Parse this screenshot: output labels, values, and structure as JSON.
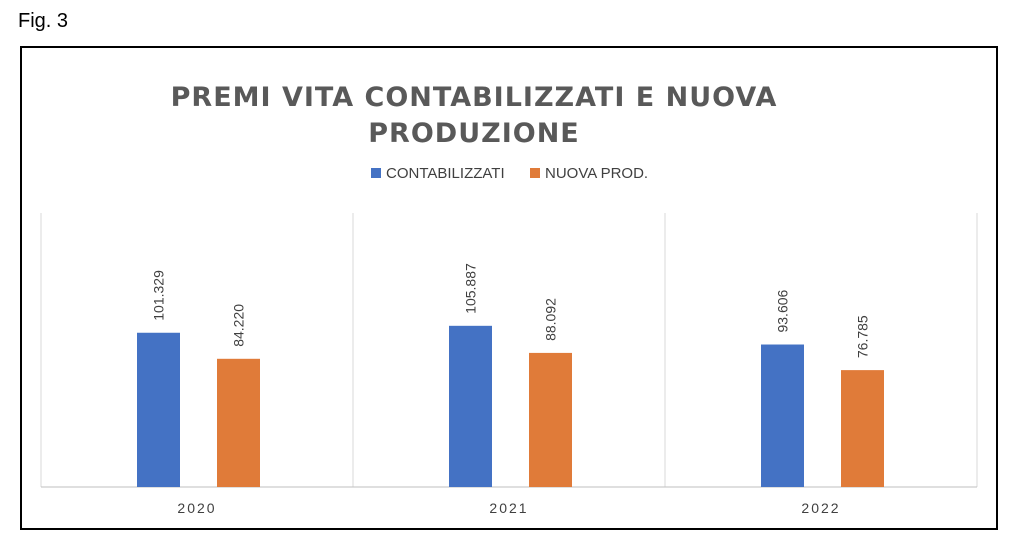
{
  "figure_label": "Fig. 3",
  "chart_data": {
    "type": "bar",
    "title": "PREMI VITA CONTABILIZZATI E NUOVA PRODUZIONE",
    "title_lines": [
      "PREMI VITA CONTABILIZZATI E NUOVA",
      "PRODUZIONE"
    ],
    "categories": [
      "2020",
      "2021",
      "2022"
    ],
    "series": [
      {
        "name": "CONTABILIZZATI",
        "values": [
          101329,
          105887,
          93606
        ],
        "labels": [
          "101.329",
          "105.887",
          "93.606"
        ],
        "color": "#4472C4"
      },
      {
        "name": "NUOVA PROD.",
        "values": [
          84220,
          88092,
          76785
        ],
        "labels": [
          "84.220",
          "88.092",
          "76.785"
        ],
        "color": "#E07B39"
      }
    ],
    "legend_position": "top",
    "grid": "vertical category separators",
    "ylim": [
      0,
      180000
    ]
  }
}
